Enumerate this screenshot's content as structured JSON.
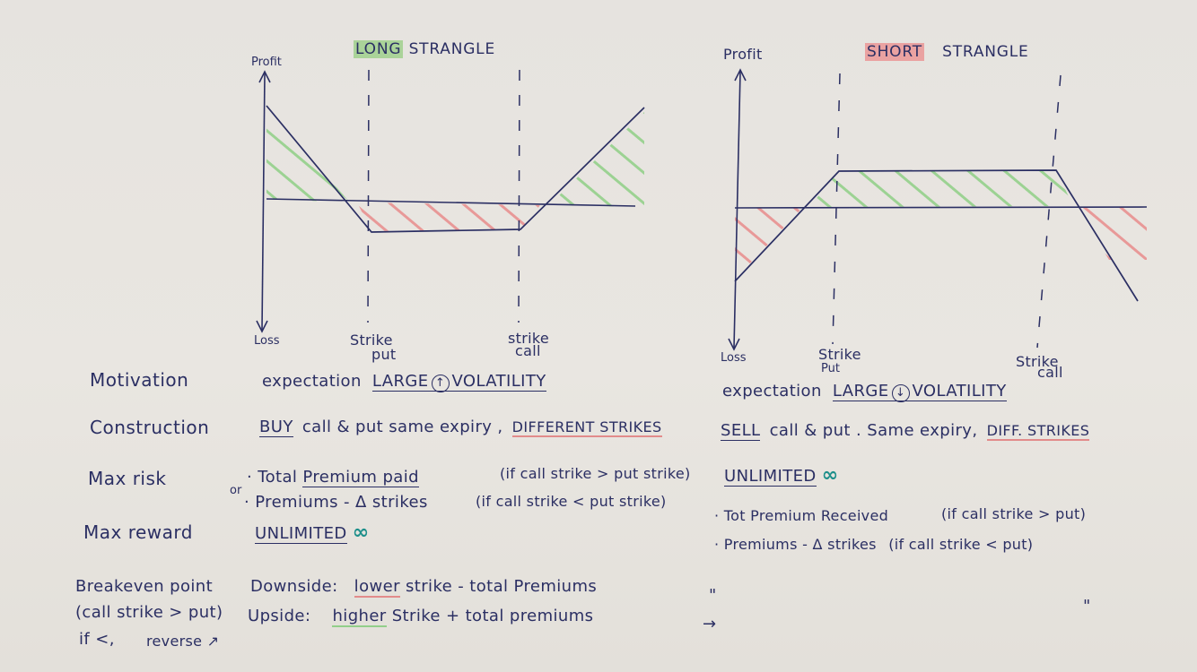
{
  "colors": {
    "ink": "#2b2f63",
    "profit_hatch": "#8fcf86",
    "loss_hatch": "#e88c8c",
    "infinity": "#1d8f8a"
  },
  "long_chart": {
    "title_highlight": "LONG",
    "title_rest": "STRANGLE",
    "y_top": "Profit",
    "y_bottom": "Loss",
    "strike_put_line1": "Strike",
    "strike_put_line2": "put",
    "strike_call_line1": "strike",
    "strike_call_line2": "call"
  },
  "short_chart": {
    "title_highlight": "SHORT",
    "title_rest": "STRANGLE",
    "y_top": "Profit",
    "y_bottom": "Loss",
    "strike_put_line1": "Strike",
    "strike_put_line2": "Put",
    "strike_call_line1": "Strike",
    "strike_call_line2": "call"
  },
  "rows": {
    "motivation": "Motivation",
    "construction": "Construction",
    "max_risk": "Max risk",
    "max_reward": "Max reward",
    "breakeven_1": "Breakeven point",
    "breakeven_2": "(call strike > put)",
    "breakeven_3": "if <,",
    "breakeven_4": "reverse"
  },
  "long": {
    "motivation_pre": "expectation",
    "motivation_main": "LARGE",
    "motivation_arrow": "↑",
    "motivation_post": "VOLATILITY",
    "construction_buy": "BUY",
    "construction_mid": "call & put  same expiry ,",
    "construction_strikes": "DIFFERENT STRIKES",
    "risk_1_pre": "· Total",
    "risk_1_emph": "Premium paid",
    "risk_1_cond": "(if call strike > put strike)",
    "risk_or": "or",
    "risk_2": "· Premiums - Δ strikes",
    "risk_2_cond": "(if call strike < put strike)",
    "reward": "UNLIMITED",
    "reward_symbol": "∞",
    "downside_label": "Downside:",
    "downside_hl": "lower",
    "downside_rest": "strike  -  total  Premiums",
    "upside_label": "Upside:",
    "upside_hl": "higher",
    "upside_rest": "Strike  +   total  premiums"
  },
  "short": {
    "motivation_pre": "expectation",
    "motivation_main": "LARGE",
    "motivation_arrow": "↓",
    "motivation_post": "VOLATILITY",
    "construction_sell": "SELL",
    "construction_mid": "call & put . Same expiry,",
    "construction_strikes": "DIFF. STRIKES",
    "risk": "UNLIMITED",
    "risk_symbol": "∞",
    "reward_1": "· Tot Premium Received",
    "reward_1_cond": "(if call strike > put)",
    "reward_2": "· Premiums  -  Δ  strikes",
    "reward_2_cond": "(if call strike < put)",
    "ditto_1": "\"",
    "arrow": "→",
    "ditto_2": "\""
  }
}
